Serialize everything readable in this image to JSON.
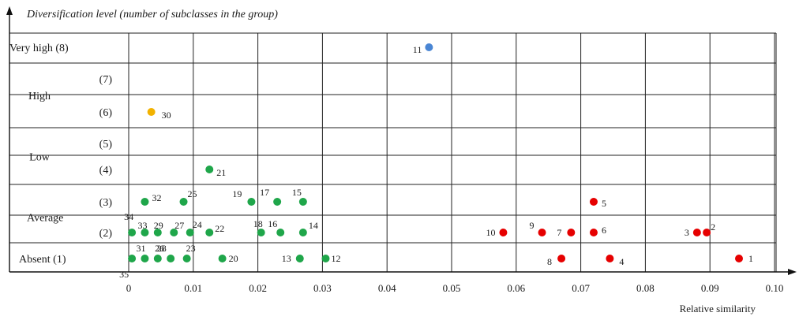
{
  "chart_data": {
    "type": "scatter",
    "ylabel": "Diversification level (number of subclasses in the group)",
    "xlabel": "Relative similarity",
    "xlim": [
      0,
      0.1
    ],
    "ylim": [
      1,
      8
    ],
    "x_ticks": [
      "0",
      "0.01",
      "0.02",
      "0.03",
      "0.04",
      "0.05",
      "0.06",
      "0.07",
      "0.08",
      "0.09",
      "0.10"
    ],
    "y_levels": [
      {
        "level": 8,
        "label": "Very high (8)"
      },
      {
        "level": 7,
        "label": "(7)"
      },
      {
        "level": 6,
        "label": "(6)"
      },
      {
        "level": 5,
        "label": "(5)"
      },
      {
        "level": 4,
        "label": "(4)"
      },
      {
        "level": 3,
        "label": "(3)"
      },
      {
        "level": 2,
        "label": "(2)"
      },
      {
        "level": 1,
        "label": "Absent (1)"
      }
    ],
    "category_labels": [
      {
        "text": "High",
        "level": 6.5
      },
      {
        "text": "Low",
        "level": 4.5
      },
      {
        "text": "Average",
        "level": 2.5
      }
    ],
    "colors": {
      "green": "#1fa64a",
      "red": "#e60000",
      "blue": "#4a86d4",
      "orange": "#f2b200"
    },
    "points": [
      {
        "id": "1",
        "x": 0.0945,
        "y": 1,
        "color": "red"
      },
      {
        "id": "2",
        "x": 0.0895,
        "y": 2,
        "color": "red"
      },
      {
        "id": "3",
        "x": 0.088,
        "y": 2,
        "color": "red"
      },
      {
        "id": "4",
        "x": 0.0745,
        "y": 1,
        "color": "red"
      },
      {
        "id": "5",
        "x": 0.072,
        "y": 3,
        "color": "red"
      },
      {
        "id": "6",
        "x": 0.072,
        "y": 2,
        "color": "red"
      },
      {
        "id": "7",
        "x": 0.0685,
        "y": 2,
        "color": "red"
      },
      {
        "id": "8",
        "x": 0.067,
        "y": 1,
        "color": "red"
      },
      {
        "id": "9",
        "x": 0.064,
        "y": 2,
        "color": "red"
      },
      {
        "id": "10",
        "x": 0.058,
        "y": 2,
        "color": "red"
      },
      {
        "id": "11",
        "x": 0.0465,
        "y": 8,
        "color": "blue"
      },
      {
        "id": "12",
        "x": 0.0305,
        "y": 1,
        "color": "green"
      },
      {
        "id": "13",
        "x": 0.0265,
        "y": 1,
        "color": "green"
      },
      {
        "id": "14",
        "x": 0.027,
        "y": 2,
        "color": "green"
      },
      {
        "id": "15",
        "x": 0.027,
        "y": 3,
        "color": "green"
      },
      {
        "id": "16",
        "x": 0.0235,
        "y": 2,
        "color": "green"
      },
      {
        "id": "17",
        "x": 0.023,
        "y": 3,
        "color": "green"
      },
      {
        "id": "18",
        "x": 0.0205,
        "y": 2,
        "color": "green"
      },
      {
        "id": "19",
        "x": 0.019,
        "y": 3,
        "color": "green"
      },
      {
        "id": "20",
        "x": 0.0145,
        "y": 1,
        "color": "green"
      },
      {
        "id": "21",
        "x": 0.0125,
        "y": 4,
        "color": "green"
      },
      {
        "id": "22",
        "x": 0.0125,
        "y": 2,
        "color": "green"
      },
      {
        "id": "23",
        "x": 0.009,
        "y": 1,
        "color": "green"
      },
      {
        "id": "24",
        "x": 0.0095,
        "y": 2,
        "color": "green"
      },
      {
        "id": "25",
        "x": 0.0085,
        "y": 3,
        "color": "green"
      },
      {
        "id": "26",
        "x": 0.0065,
        "y": 1,
        "color": "green"
      },
      {
        "id": "27",
        "x": 0.007,
        "y": 2,
        "color": "green"
      },
      {
        "id": "28",
        "x": 0.0045,
        "y": 1,
        "color": "green"
      },
      {
        "id": "29",
        "x": 0.0045,
        "y": 2,
        "color": "green"
      },
      {
        "id": "30",
        "x": 0.0035,
        "y": 6,
        "color": "orange"
      },
      {
        "id": "31",
        "x": 0.0025,
        "y": 1,
        "color": "green"
      },
      {
        "id": "32",
        "x": 0.0025,
        "y": 3,
        "color": "green"
      },
      {
        "id": "33",
        "x": 0.0025,
        "y": 2,
        "color": "green"
      },
      {
        "id": "34",
        "x": 0.0005,
        "y": 2,
        "color": "green"
      },
      {
        "id": "35",
        "x": 0.0005,
        "y": 1,
        "color": "green"
      }
    ]
  }
}
